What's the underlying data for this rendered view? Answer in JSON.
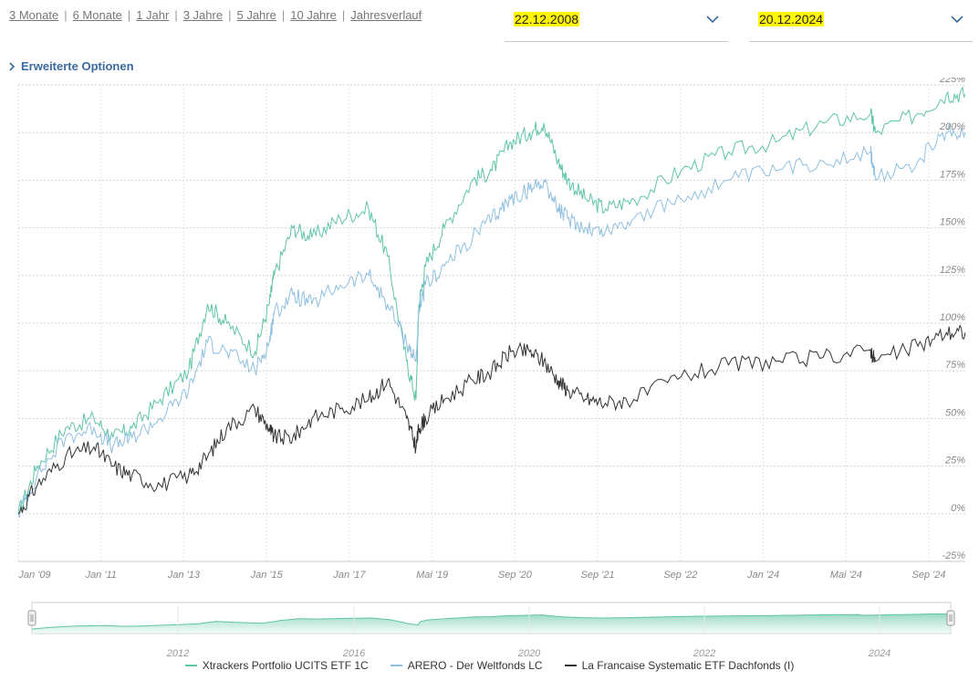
{
  "periods": [
    "3 Monate",
    "6 Monate",
    "1 Jahr",
    "3 Jahre",
    "5 Jahre",
    "10 Jahre",
    "Jahresverlauf"
  ],
  "date_from": "22.12.2008",
  "date_to": "20.12.2024",
  "extended_options": "Erweiterte Optionen",
  "colors": {
    "accent": "#3b6aa0",
    "highlight": "#fff700"
  },
  "chart_data": {
    "type": "line",
    "x_ticks": [
      "Jan '09",
      "Jan '11",
      "Jan '13",
      "Jan '15",
      "Jan '17",
      "Mai '19",
      "Sep '20",
      "Sep '21",
      "Sep '22",
      "Jan '24",
      "Mai '24",
      "Sep '24"
    ],
    "y_ticks": [
      "225%",
      "200%",
      "175%",
      "150%",
      "125%",
      "100%",
      "75%",
      "50%",
      "25%",
      "0%",
      "-25%"
    ],
    "ylim": [
      -25,
      225
    ],
    "grid": true,
    "legend_position": "bottom",
    "series": [
      {
        "name": "Xtrackers Portfolio UCITS ETF 1C",
        "color": "#5fc4a8",
        "x": [
          0,
          0.02,
          0.05,
          0.08,
          0.1,
          0.12,
          0.15,
          0.18,
          0.2,
          0.22,
          0.25,
          0.265,
          0.27,
          0.29,
          0.31,
          0.34,
          0.37,
          0.39,
          0.41,
          0.42,
          0.423,
          0.43,
          0.45,
          0.48,
          0.5,
          0.52,
          0.54,
          0.555,
          0.57,
          0.58,
          0.6,
          0.62,
          0.65,
          0.7,
          0.75,
          0.8,
          0.85,
          0.9,
          0.905,
          0.95,
          0.98,
          1.0
        ],
        "y": [
          0,
          25,
          45,
          50,
          40,
          45,
          60,
          75,
          110,
          100,
          85,
          110,
          125,
          150,
          145,
          155,
          160,
          135,
          80,
          60,
          110,
          130,
          150,
          175,
          180,
          195,
          200,
          205,
          185,
          175,
          165,
          160,
          165,
          180,
          190,
          195,
          205,
          210,
          200,
          210,
          220,
          220
        ]
      },
      {
        "name": "ARERO - Der Weltfonds LC",
        "color": "#8fbfe0",
        "x": [
          0,
          0.02,
          0.05,
          0.08,
          0.1,
          0.12,
          0.15,
          0.18,
          0.2,
          0.22,
          0.25,
          0.265,
          0.27,
          0.29,
          0.31,
          0.34,
          0.37,
          0.39,
          0.41,
          0.42,
          0.423,
          0.43,
          0.45,
          0.48,
          0.5,
          0.52,
          0.54,
          0.555,
          0.57,
          0.58,
          0.6,
          0.62,
          0.65,
          0.7,
          0.75,
          0.8,
          0.85,
          0.9,
          0.905,
          0.95,
          0.98,
          1.0
        ],
        "y": [
          0,
          20,
          40,
          45,
          35,
          40,
          50,
          65,
          90,
          85,
          75,
          90,
          105,
          115,
          110,
          120,
          125,
          110,
          90,
          80,
          105,
          120,
          130,
          145,
          155,
          165,
          170,
          175,
          160,
          155,
          150,
          148,
          155,
          165,
          175,
          180,
          185,
          190,
          175,
          185,
          200,
          200
        ]
      },
      {
        "name": "La Francaise Systematic ETF Dachfonds (I)",
        "color": "#333333",
        "x": [
          0,
          0.02,
          0.05,
          0.08,
          0.1,
          0.12,
          0.15,
          0.18,
          0.2,
          0.22,
          0.25,
          0.265,
          0.27,
          0.29,
          0.31,
          0.34,
          0.37,
          0.39,
          0.41,
          0.42,
          0.423,
          0.43,
          0.45,
          0.48,
          0.5,
          0.52,
          0.54,
          0.555,
          0.57,
          0.58,
          0.6,
          0.62,
          0.65,
          0.7,
          0.75,
          0.8,
          0.85,
          0.9,
          0.905,
          0.95,
          0.98,
          1.0
        ],
        "y": [
          0,
          15,
          30,
          35,
          25,
          20,
          15,
          20,
          30,
          45,
          55,
          45,
          40,
          40,
          50,
          55,
          60,
          70,
          50,
          35,
          45,
          50,
          60,
          70,
          75,
          85,
          85,
          80,
          70,
          65,
          60,
          58,
          60,
          72,
          78,
          80,
          82,
          86,
          80,
          88,
          95,
          95
        ]
      }
    ]
  },
  "navigator": {
    "x_ticks": [
      "2012",
      "2016",
      "2020",
      "2022",
      "2024"
    ]
  }
}
